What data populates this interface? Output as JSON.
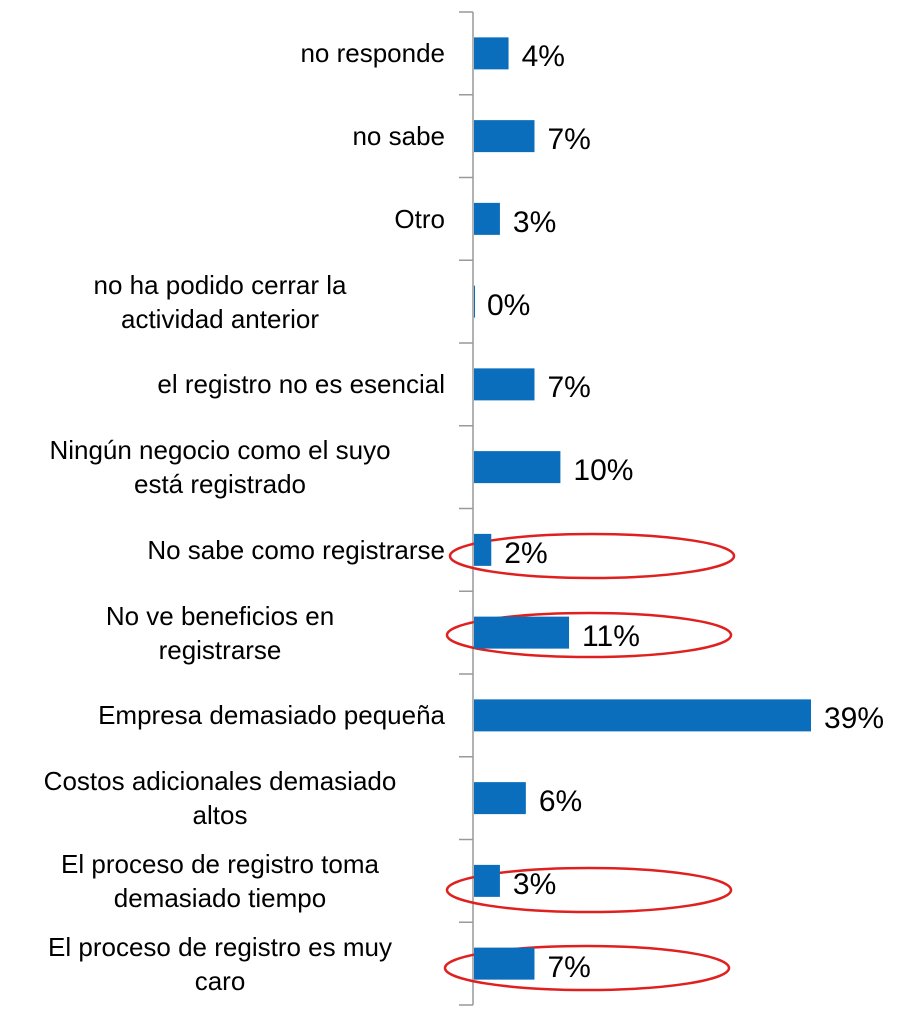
{
  "chart_data": {
    "type": "bar",
    "orientation": "horizontal",
    "categories": [
      "no responde",
      "no sabe",
      "Otro",
      "no ha podido cerrar la\nactividad anterior",
      "el registro no es esencial",
      "Ningún negocio como el suyo\nestá registrado",
      "No sabe como registrarse",
      "No ve beneficios en\nregistrarse",
      "Empresa demasiado pequeña",
      "Costos adicionales demasiado\naltos",
      "El proceso de registro toma\ndemasiado tiempo",
      "El proceso de registro es muy\ncaro"
    ],
    "values": [
      4,
      7,
      3,
      0,
      7,
      10,
      2,
      11,
      39,
      6,
      3,
      7
    ],
    "value_labels": [
      "4%",
      "7%",
      "3%",
      "0%",
      "7%",
      "10%",
      "2%",
      "11%",
      "39%",
      "6%",
      "3%",
      "7%"
    ],
    "color": "#0a6ebd"
  }
}
